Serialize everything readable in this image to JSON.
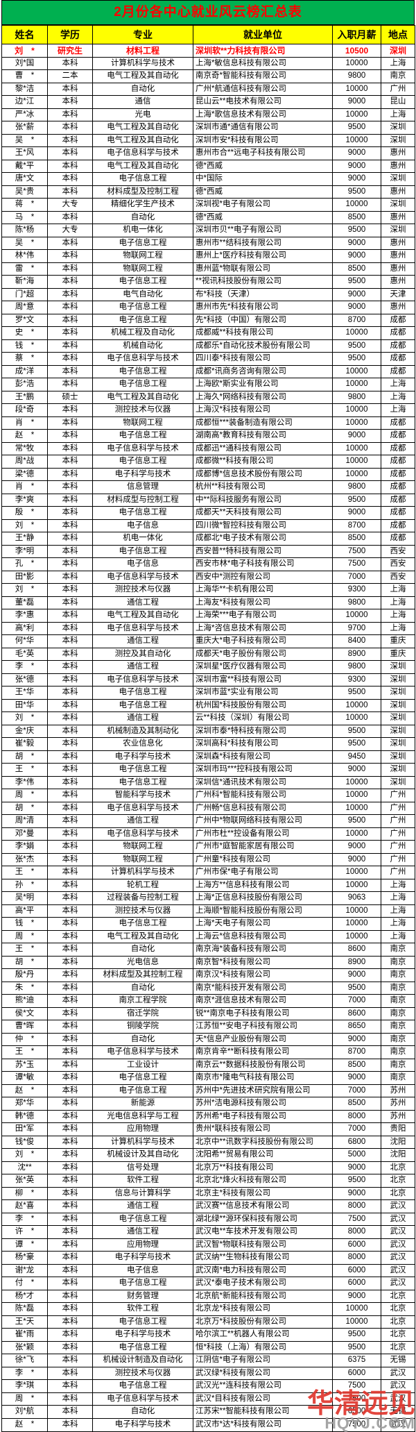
{
  "title": "2月份各中心就业风云榜汇总表",
  "table": {
    "columns": [
      "姓名",
      "学历",
      "专业",
      "就业单位",
      "入职月薪",
      "地点"
    ],
    "highlight_row_index": 0,
    "highlight_color": "#ff0000",
    "rows": [
      [
        "刘　*",
        "研究生",
        "材料工程",
        "深圳软**力科技有限公司",
        "10500",
        "深圳"
      ],
      [
        "刘*国",
        "本科",
        "计算机科学与技术",
        "上海*敏信息科技有限公司",
        "10000",
        "上海"
      ],
      [
        "曹　*",
        "二本",
        "电气工程及其自动化",
        "南京奇*智能科技有限公司",
        "9800",
        "南京"
      ],
      [
        "黎*洁",
        "本科",
        "自动化",
        "广州*航通信科技有限公司",
        "10000",
        "广州"
      ],
      [
        "边*江",
        "本科",
        "通信",
        "昆山云**电技术有限公司",
        "9000",
        "昆山"
      ],
      [
        "严*冰",
        "本科",
        "光电",
        "上海*歌信息技术有限公司",
        "10000",
        "上海"
      ],
      [
        "张*薪",
        "本科",
        "电气工程及其自动化",
        "深圳市通*通信有限公司",
        "9500",
        "深圳"
      ],
      [
        "吴　*",
        "本科",
        "电气工程及其自动化",
        "深圳市安*科技有限公司",
        "10000",
        "深圳"
      ],
      [
        "王*风",
        "本科",
        "电子信息科学与技术",
        "惠州市合**远电子科技有限公司",
        "9000",
        "惠州"
      ],
      [
        "戴*平",
        "本科",
        "电气工程及其自动化",
        "德*西威",
        "9000",
        "惠州"
      ],
      [
        "唐*文",
        "本科",
        "电子信息工程",
        "中*国际",
        "9000",
        "深圳"
      ],
      [
        "吴*贵",
        "本科",
        "材料成型及控制工程",
        "德*西威",
        "9500",
        "惠州"
      ],
      [
        "蒋　*",
        "大专",
        "精细化学生产技术",
        "深圳视*电子有限公司",
        "10000",
        "深圳"
      ],
      [
        "马　*",
        "本科",
        "自动化",
        "德*西威",
        "8500",
        "惠州"
      ],
      [
        "陈*杨",
        "大专",
        "机电一体化",
        "深圳市贝**电子有限公司",
        "9500",
        "深圳"
      ],
      [
        "吴　*",
        "本科",
        "电子信息工程",
        "惠州市**结科技有限公司",
        "9000",
        "惠州"
      ],
      [
        "林*伟",
        "本科",
        "物联网工程",
        "惠州上*医疗科技有限公司",
        "9000",
        "惠州"
      ],
      [
        "雷　*",
        "本科",
        "物联网工程",
        "惠州蓝*物联有限公司",
        "8500",
        "惠州"
      ],
      [
        "靳*海",
        "本科",
        "电子信息工程",
        "**视讯科技股份有限公司",
        "9500",
        "惠州"
      ],
      [
        "门*超",
        "本科",
        "电气自动化",
        "布*科技（天津）",
        "9000",
        "天津"
      ],
      [
        "周*意",
        "本科",
        "电子信息工程",
        "惠州市先*科技有限公司",
        "9000",
        "惠州"
      ],
      [
        "罗*文",
        "本科",
        "电子信息工程",
        "先*科技（中国）有限公司",
        "8700",
        "成都"
      ],
      [
        "史　*",
        "本科",
        "机械工程及自动化",
        "成都威**科技有限公司",
        "10000",
        "成都"
      ],
      [
        "钱　*",
        "本科",
        "机械自动化",
        "成都乐*自动化技术股份有限公司",
        "9500",
        "成都"
      ],
      [
        "蔡　*",
        "本科",
        "电子信息科学与技术",
        "四川泰*科技有限公司",
        "9500",
        "成都"
      ],
      [
        "成*洋",
        "本科",
        "电子信息工程",
        "成都*讯商务咨询有限公司",
        "10000",
        "成都"
      ],
      [
        "彭*浩",
        "本科",
        "电子信息工程",
        "上海欧*斯实业有限公司",
        "10000",
        "上海"
      ],
      [
        "王*鹏",
        "硕士",
        "电气工程及其自动化",
        "上海久*网络科技有限公司",
        "9800",
        "上海"
      ],
      [
        "段*奇",
        "本科",
        "测控技术与仪器",
        "上海汉*科技有限公司",
        "10000",
        "上海"
      ],
      [
        "肖　*",
        "本科",
        "物联网工程",
        "成都恒***装备制造有限公司",
        "10000",
        "成都"
      ],
      [
        "赵　*",
        "本科",
        "电子信息工程",
        "湖南高*教育科技有限公司",
        "9000",
        "成都"
      ],
      [
        "常*牧",
        "本科",
        "电子信息科学与技术",
        "成都迅**通科技有限公司",
        "10000",
        "成都"
      ],
      [
        "周*战",
        "本科",
        "电子信息工程",
        "成都微**科技有限公司",
        "10000",
        "成都"
      ],
      [
        "梁*德",
        "本科",
        "电子科学与技术",
        "成都博*信息技术股份有限公司",
        "10000",
        "成都"
      ],
      [
        "肖　*",
        "本科",
        "信息管理",
        "杭州**科技有限公司",
        "9800",
        "成都"
      ],
      [
        "李*爽",
        "本科",
        "材料成型与控制工程",
        "中**际科技服务有限公司",
        "9500",
        "成都"
      ],
      [
        "殷　*",
        "本科",
        "电子信息工程",
        "成都天**天科技有限公司",
        "9000",
        "成都"
      ],
      [
        "刘　*",
        "本科",
        "电子信息",
        "四川微*智控科技有限公司",
        "8700",
        "成都"
      ],
      [
        "王*静",
        "本科",
        "机电一体化",
        "成都北*电子技术有限公司",
        "8500",
        "成都"
      ],
      [
        "李*明",
        "本科",
        "电子信息工程",
        "西安普**特科技有限公司",
        "7500",
        "西安"
      ],
      [
        "孔　*",
        "本科",
        "电子信息",
        "西安市林*电子科技有限公司",
        "7500",
        "西安"
      ],
      [
        "田*影",
        "本科",
        "电子信息科学与技术",
        "西安中*测控有限公司",
        "7000",
        "西安"
      ],
      [
        "刘　*",
        "本科",
        "测控技术与仪器",
        "上海华**卡机有限公司",
        "9300",
        "上海"
      ],
      [
        "董*磊",
        "本科",
        "通信工程",
        "上海友*科技有限公司",
        "9800",
        "上海"
      ],
      [
        "李*惠",
        "本科",
        "电气工程及其自动化",
        "上海荣***电子有限公司",
        "10000",
        "上海"
      ],
      [
        "高*利",
        "本科",
        "电子信息科学与技术",
        "上海*咨信息技术有限公司",
        "9700",
        "上海"
      ],
      [
        "何*华",
        "本科",
        "通信工程",
        "重庆大*电子科技有限公司",
        "8400",
        "重庆"
      ],
      [
        "毛*英",
        "本科",
        "测控及其自动化",
        "成都天*电子股份有限公司",
        "8900",
        "重庆"
      ],
      [
        "李　*",
        "本科",
        "通信工程",
        "深圳星*医疗仪器有限公司",
        "9800",
        "深圳"
      ],
      [
        "张*德",
        "本科",
        "电子信息科学与技术",
        "深圳市富**科技有限公司",
        "9300",
        "深圳"
      ],
      [
        "王*华",
        "本科",
        "电子信息工程",
        "深圳市蓝*实业有限公司",
        "9500",
        "深圳"
      ],
      [
        "田*华",
        "本科",
        "电子信息工程",
        "杭州国*科技股份有限公司",
        "10000",
        "深圳"
      ],
      [
        "刘　*",
        "本科",
        "通信工程",
        "云**科技（深圳）有限公司",
        "10000",
        "深圳"
      ],
      [
        "金*庆",
        "本科",
        "机械制造及其制动化",
        "深圳市泰*特科技有限公司",
        "9500",
        "深圳"
      ],
      [
        "崔*毅",
        "本科",
        "农业信息化",
        "深圳高科*科技有限公司",
        "9500",
        "深圳"
      ],
      [
        "胡　*",
        "本科",
        "电子科学与技术",
        "深圳森*科技有限公司",
        "9450",
        "深圳"
      ],
      [
        "王　*",
        "本科",
        "电子信息工程",
        "深圳市玛***控科技有限公司",
        "9000",
        "深圳"
      ],
      [
        "李*伟",
        "本科",
        "电子信息工程",
        "深圳信*通讯技术有限公司",
        "10000",
        "深圳"
      ],
      [
        "周　*",
        "本科",
        "智能科学与技术",
        "广州科*智能科技有限公司",
        "10000",
        "广州"
      ],
      [
        "胡　*",
        "本科",
        "电子信息科学与技术",
        "广州畅*信息科技有限公司",
        "10000",
        "广州"
      ],
      [
        "周*清",
        "本科",
        "通信工程",
        "广州中*物联网络科技有限公司",
        "9500",
        "广州"
      ],
      [
        "邓*曼",
        "本科",
        "电子信息科学与技术",
        "广州市杜**控设备有限公司",
        "10000",
        "广州"
      ],
      [
        "李*娟",
        "本科",
        "物联网工程",
        "广州市*庭智能家居有限公司",
        "9000",
        "广州"
      ],
      [
        "张*杰",
        "本科",
        "物联网工程",
        "广州童*科技有限公司",
        "9000",
        "广州"
      ],
      [
        "王　*",
        "本科",
        "计算机科学与技术",
        "广州市保*电子有限公司",
        "10000",
        "广州"
      ],
      [
        "孙　*",
        "本科",
        "轮机工程",
        "上海方**信息科技有限公司",
        "10000",
        "上海"
      ],
      [
        "吴*明",
        "本科",
        "过程装备与控制工程",
        "上海*正信息科技股份有限公司",
        "9063",
        "上海"
      ],
      [
        "高*平",
        "本科",
        "测控技术与仪器",
        "上海顺*智能科技股份有限公司",
        "10000",
        "上海"
      ],
      [
        "钱　*",
        "本科",
        "电子信息工程",
        "上海*天电子有限公司",
        "10000",
        "上海"
      ],
      [
        "周　*",
        "本科",
        "电气工程及其自动化",
        "上海云*信息科技有限公司",
        "10000",
        "上海"
      ],
      [
        "王　*",
        "本科",
        "自动化",
        "南京海*装备科技有限公司",
        "8600",
        "南京"
      ],
      [
        "胡　*",
        "本科",
        "光电信息",
        "南京智*科技有限公司",
        "8900",
        "南京"
      ],
      [
        "殷*丹",
        "本科",
        "材料成型及其控制工程",
        "南京汉*科技有限公司",
        "9000",
        "南京"
      ],
      [
        "朱　*",
        "本科",
        "自动化",
        "南京*能科技开发有限公司",
        "9500",
        "南京"
      ],
      [
        "熊*迪",
        "本科",
        "南京工程学院",
        "南京*涯信息技术有限公司",
        "7000",
        "南京"
      ],
      [
        "侯*文",
        "本科",
        "宿迁学院",
        "锐**南京电子科技有限公司",
        "8600",
        "南京"
      ],
      [
        "曹*晖",
        "本科",
        "铜陵学院",
        "江苏恒**安电子科技有限公司",
        "8650",
        "南京"
      ],
      [
        "仲　*",
        "本科",
        "自动化",
        "天*信息产业股份有限公司",
        "9000",
        "南京"
      ],
      [
        "王　*",
        "本科",
        "电子信息科学与技术",
        "南京肯辛**断科技有限公司",
        "8700",
        "南京"
      ],
      [
        "苏*玉",
        "本科",
        "工业设计",
        "南京云**数据科技股份有限公司",
        "8500",
        "南京"
      ],
      [
        "谭*敏",
        "本科",
        "电子信息工程",
        "南京市*隆电气科技有限公司",
        "9000",
        "南京"
      ],
      [
        "赵　*",
        "本科",
        "电子信息工程",
        "苏州中*先进技术研究院有限公司",
        "7000",
        "苏州"
      ],
      [
        "郑*华",
        "本科",
        "新能源",
        "苏州*洁电源科技有限公司",
        "8500",
        "苏州"
      ],
      [
        "韩*德",
        "本科",
        "光电信息科学与工程",
        "苏州希*电子科技有限公司",
        "8000",
        "苏州"
      ],
      [
        "田*军",
        "本科",
        "应用物理",
        "贵州*联科技有限公司",
        "7000",
        "贵阳"
      ],
      [
        "钱*俊",
        "本科",
        "计算机科学与技术",
        "北京中**讯数字科技股份有限公司",
        "6800",
        "沈阳"
      ],
      [
        "刘　*",
        "本科",
        "机械设计及其自动化",
        "沈阳希**贸易有限公司",
        "5000",
        "沈阳"
      ],
      [
        "沈**",
        "本科",
        "信号处理",
        "北京万**科技有限公司",
        "9000",
        "北京"
      ],
      [
        "张*英",
        "本科",
        "软件工程",
        "北京北*烽火科技有限公司",
        "9500",
        "北京"
      ],
      [
        "柳　*",
        "本科",
        "信息与计算科学",
        "北京主*科技有限公司",
        "9000",
        "北京"
      ],
      [
        "赵*喜",
        "本科",
        "通信工程",
        "武汉赛**信息技术有限公司",
        "8000",
        "武汉"
      ],
      [
        "李　*",
        "本科",
        "电子信息工程",
        "湖北绿**源环保科技有限公司",
        "7500",
        "武汉"
      ],
      [
        "许　*",
        "本科",
        "通信工程",
        "武汉电**车技术开发有限公司",
        "8000",
        "武汉"
      ],
      [
        "谭　*",
        "本科",
        "应用物理",
        "武汉智*物联科技有限公司",
        "6000",
        "武汉"
      ],
      [
        "杨*豪",
        "本科",
        "电子科学与技术",
        "武汉纳**生物科技有限公司",
        "8000",
        "武汉"
      ],
      [
        "谢*龙",
        "本科",
        "电子信息",
        "武汉南*电力科技有限公司",
        "6000",
        "武汉"
      ],
      [
        "付　*",
        "本科",
        "电子信息工程",
        "武汉*泰电子技术有限公司",
        "6000",
        "武汉"
      ],
      [
        "杨*才",
        "本科",
        "财务管理",
        "北京航*新能科技有限公司",
        "9000",
        "北京"
      ],
      [
        "陈*磊",
        "本科",
        "软件工程",
        "北京龙*科技有限公司",
        "10000",
        "北京"
      ],
      [
        "王*天",
        "本科",
        "电子信息工程",
        "北京万*科技股份有限公司",
        "10000",
        "北京"
      ],
      [
        "崔*雨",
        "本科",
        "电子科学与技术",
        "哈尔滨工**机器人有限公司",
        "9500",
        "北京"
      ],
      [
        "张*颖",
        "本科",
        "电子信息工程",
        "恒*科技（上海）有限公司",
        "9500",
        "北京"
      ],
      [
        "徐*飞",
        "本科",
        "机械设计制造及自动化",
        "江阴信*电子有限公司",
        "6375",
        "无锡"
      ],
      [
        "李　*",
        "本科",
        "测控技术与仪器",
        "武汉绿*科技有限公司",
        "6000",
        "武汉"
      ],
      [
        "李*琪",
        "本科",
        "电子信息工程",
        "武汉光**连科技有限公司",
        "7500",
        "武汉"
      ],
      [
        "周　*",
        "本科",
        "电子信息科学与技术",
        "武汉*目科技有限公司",
        "7500",
        "武汉"
      ],
      [
        "刘*航",
        "本科",
        "自动化",
        "江苏宋**智能科技有限公司",
        "6500",
        "无锡"
      ],
      [
        "赵　*",
        "本科",
        "电子科学与技术",
        "武汉市*达*科技有限公司",
        "7500",
        "武汉"
      ]
    ]
  },
  "colors": {
    "title_background": "#00b050",
    "title_text": "#ff0000",
    "header_background": "#ffff00",
    "highlight_text": "#ff0000"
  },
  "watermark": {
    "text": "华清远见",
    "subtext": "HQYJ.COM"
  }
}
